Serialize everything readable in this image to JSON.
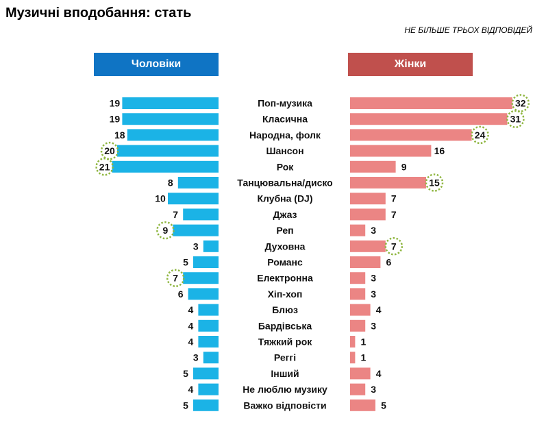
{
  "title": "Музичні вподобання: стать",
  "subtitle": "НЕ БІЛЬШЕ ТРЬОХ ВІДПОВІДЕЙ",
  "colors": {
    "men_bar": "#1bb3e6",
    "women_bar": "#eb8584",
    "men_header": "#0f74c4",
    "women_header": "#c0504d",
    "highlight_ring": "#8fb640"
  },
  "chart_data": {
    "type": "bar",
    "orientation": "horizontal-butterfly",
    "title": "Музичні вподобання: стать",
    "subtitle": "НЕ БІЛЬШЕ ТРЬОХ ВІДПОВІДЕЙ",
    "categories": [
      "Поп-музика",
      "Класична",
      "Народна, фолк",
      "Шансон",
      "Рок",
      "Танцювальна/диско",
      "Клубна (DJ)",
      "Джаз",
      "Реп",
      "Духовна",
      "Романс",
      "Електронна",
      "Хіп-хоп",
      "Блюз",
      "Бардівська",
      "Тяжкий рок",
      "Реггі",
      "Інший",
      "Не люблю музику",
      "Важко відповісти"
    ],
    "series": [
      {
        "name": "Чоловіки",
        "values": [
          19,
          19,
          18,
          20,
          21,
          8,
          10,
          7,
          9,
          3,
          5,
          7,
          6,
          4,
          4,
          4,
          3,
          5,
          4,
          5
        ],
        "highlighted": [
          false,
          false,
          false,
          true,
          true,
          false,
          false,
          false,
          true,
          false,
          false,
          true,
          false,
          false,
          false,
          false,
          false,
          false,
          false,
          false
        ]
      },
      {
        "name": "Жінки",
        "values": [
          32,
          31,
          24,
          16,
          9,
          15,
          7,
          7,
          3,
          7,
          6,
          3,
          3,
          4,
          3,
          1,
          1,
          4,
          3,
          5
        ],
        "highlighted": [
          true,
          true,
          true,
          false,
          false,
          true,
          false,
          false,
          false,
          true,
          false,
          false,
          false,
          false,
          false,
          false,
          false,
          false,
          false,
          false
        ]
      }
    ],
    "xlim": [
      0,
      32
    ]
  }
}
